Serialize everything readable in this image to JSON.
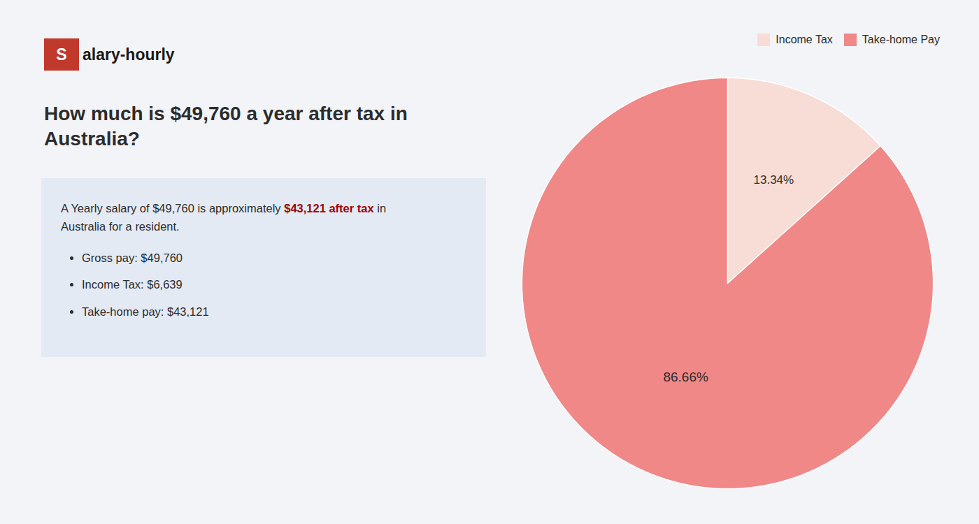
{
  "chart_data": {
    "type": "pie",
    "title": "How much is $49,760 a year after tax in Australia?",
    "categories": [
      "Income Tax",
      "Take-home Pay"
    ],
    "values": [
      13.34,
      86.66
    ],
    "value_labels": [
      "13.34%",
      "86.66%"
    ],
    "colors": [
      "#f7ddd5",
      "#f08888"
    ],
    "data_labels": true,
    "legend": "upper right",
    "annotations": [
      [
        {
          "text": "S",
          "color": "#c0392b"
        },
        "alary-hourly"
      ],
      [
        "A Yearly salary of $49,760 is approximately ",
        {
          "text": "$43,121 after tax",
          "color": "#a00000"
        },
        " in"
      ],
      [
        "Australia for a resident."
      ],
      [
        "Gross pay: $49,760"
      ],
      [
        "Income Tax: $6,639"
      ],
      [
        "Take-home pay: $43,121"
      ]
    ]
  }
}
